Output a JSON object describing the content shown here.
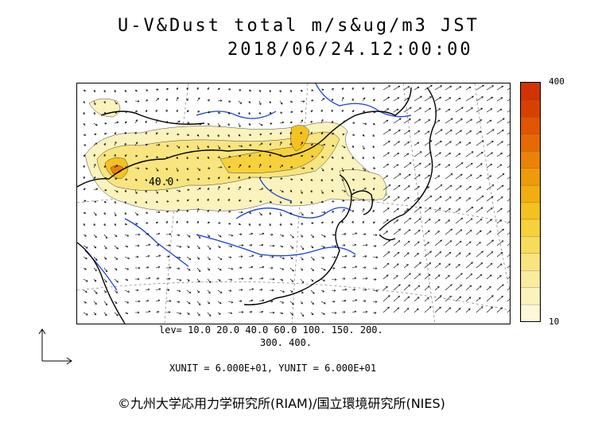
{
  "title": {
    "line1": "U-V&Dust total m/s&ug/m3 JST",
    "line2": "2018/06/24.12:00:00"
  },
  "colorbar": {
    "max_label": "400",
    "min_label": "10",
    "colors": [
      "#fcf8d8",
      "#fbf3bd",
      "#faec9f",
      "#f8e57f",
      "#f7dc5c",
      "#f6d13b",
      "#f4c21f",
      "#f2ae11",
      "#ef9a0a",
      "#eb8207",
      "#e66a04",
      "#e05502",
      "#d94000",
      "#d33300"
    ]
  },
  "contour_label": "40.0",
  "levels": {
    "line1": "lev= 10.0 20.0 40.0 60.0 100. 150. 200.",
    "line2": "300. 400."
  },
  "units_text": "XUNIT = 6.000E+01, YUNIT = 6.000E+01",
  "copyright": "©九州大学応用力学研究所(RIAM)/国立環境研究所(NIES)"
}
